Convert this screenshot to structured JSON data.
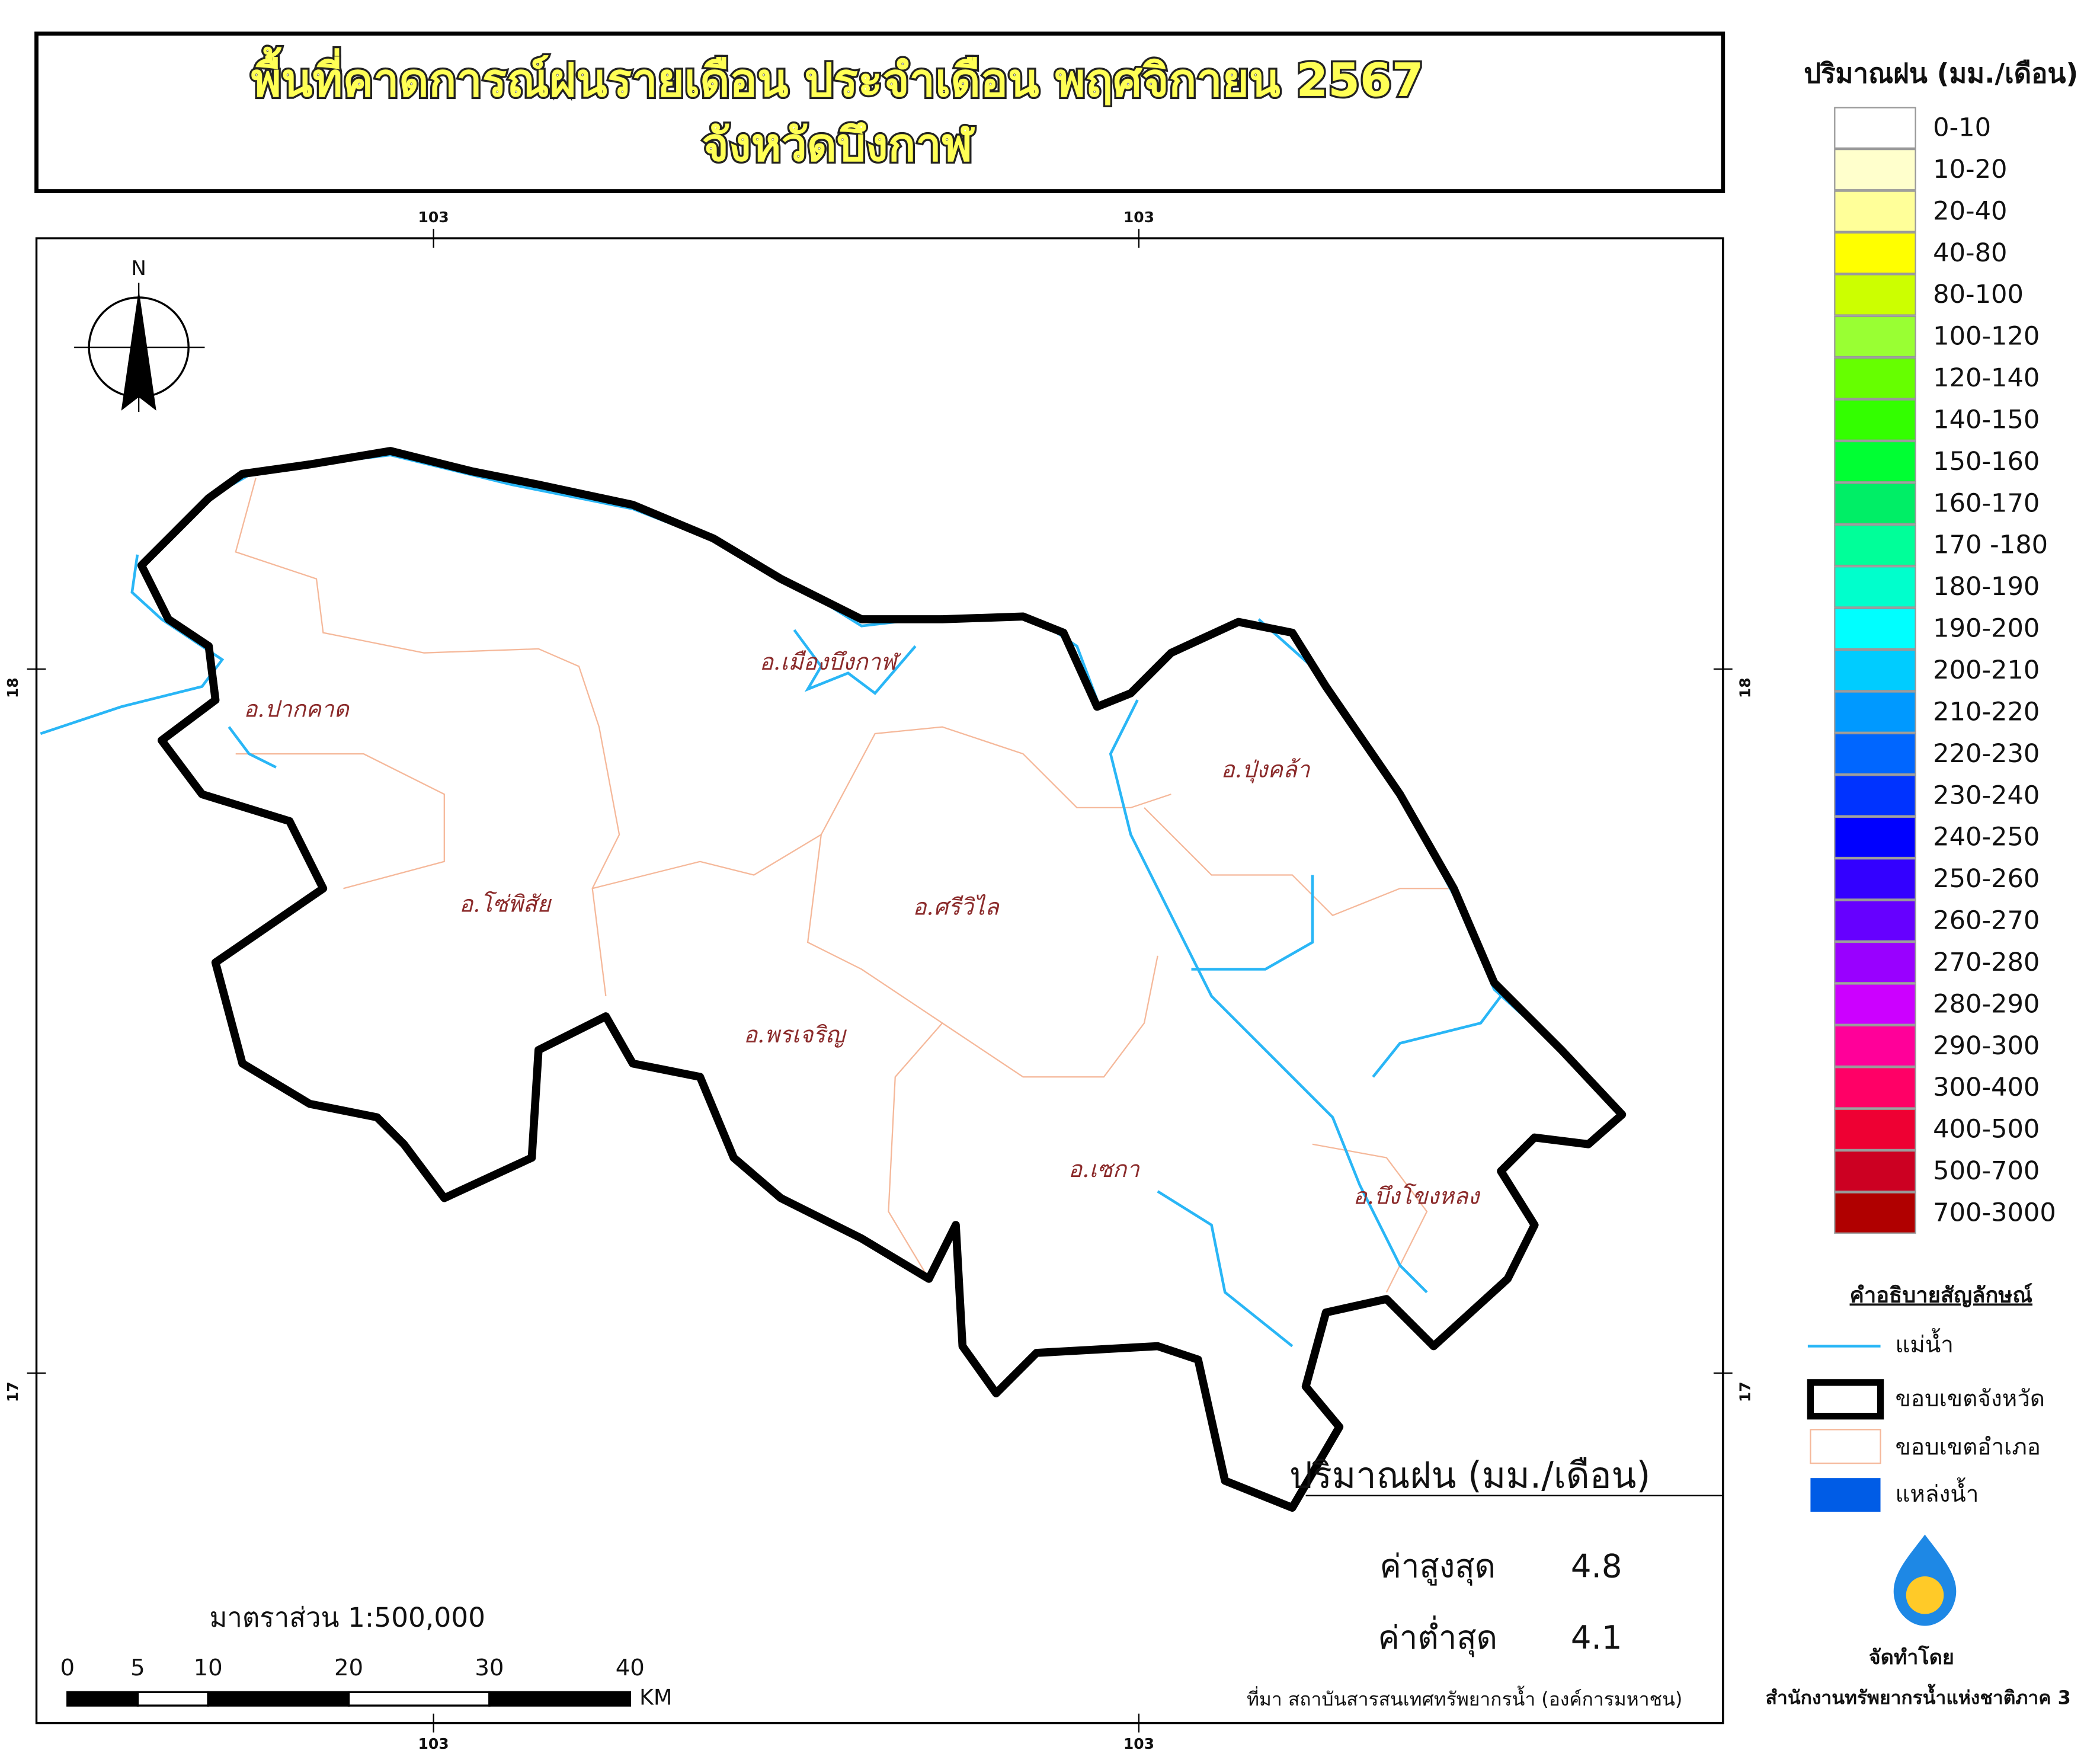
{
  "title": {
    "line1": "พื้นที่คาดการณ์ฝนรายเดือน ประจำเดือน พฤศจิกายน 2567",
    "line2": "จังหวัดบึงกาฬ"
  },
  "map": {
    "north": "N",
    "top_ticks": [
      103,
      103
    ],
    "bottom_ticks": [
      103,
      103
    ],
    "left_ticks": [
      18,
      17
    ],
    "right_ticks": [
      18,
      17
    ],
    "districts": [
      "อ.ปากคาด",
      "อ.เมืองบึงกาฬ",
      "อ.ปุ่งคล้า",
      "อ.โซ่พิสัย",
      "อ.ศรีวิไล",
      "อ.พรเจริญ",
      "อ.เซกา",
      "อ.บึงโขงหลง"
    ]
  },
  "legend": {
    "title": "ปริมาณฝน (มม./เดือน)",
    "classes": [
      {
        "label": "0-10",
        "color": "#ffffff"
      },
      {
        "label": "10-20",
        "color": "#ffffcc"
      },
      {
        "label": "20-40",
        "color": "#ffff99"
      },
      {
        "label": "40-80",
        "color": "#ffff00"
      },
      {
        "label": "80-100",
        "color": "#ccff00"
      },
      {
        "label": "100-120",
        "color": "#99ff33"
      },
      {
        "label": "120-140",
        "color": "#66ff00"
      },
      {
        "label": "140-150",
        "color": "#33ff00"
      },
      {
        "label": "150-160",
        "color": "#00ff33"
      },
      {
        "label": "160-170",
        "color": "#00ee66"
      },
      {
        "label": "170 -180",
        "color": "#00ff99"
      },
      {
        "label": "180-190",
        "color": "#00ffcc"
      },
      {
        "label": "190-200",
        "color": "#00ffff"
      },
      {
        "label": "200-210",
        "color": "#00ccff"
      },
      {
        "label": "210-220",
        "color": "#0099ff"
      },
      {
        "label": "220-230",
        "color": "#0066ff"
      },
      {
        "label": "230-240",
        "color": "#0033ff"
      },
      {
        "label": "240-250",
        "color": "#0000ff"
      },
      {
        "label": "250-260",
        "color": "#3300ff"
      },
      {
        "label": "260-270",
        "color": "#6600ff"
      },
      {
        "label": "270-280",
        "color": "#9900ff"
      },
      {
        "label": "280-290",
        "color": "#cc00ff"
      },
      {
        "label": "290-300",
        "color": "#ff0099"
      },
      {
        "label": "300-400",
        "color": "#ff0066"
      },
      {
        "label": "400-500",
        "color": "#ee0033"
      },
      {
        "label": "500-700",
        "color": "#cc0022"
      },
      {
        "label": "700-3000",
        "color": "#b00000"
      }
    ]
  },
  "symbols": {
    "title": "คำอธิบายสัญลักษณ์",
    "items": [
      "แม่น้ำ",
      "ขอบเขตจังหวัด",
      "ขอบเขตอำเภอ",
      "แหล่งน้ำ"
    ]
  },
  "stats": {
    "title": "ปริมาณฝน (มม./เดือน)",
    "max_label": "ค่าสูงสุด",
    "max": 4.8,
    "min_label": "ค่าต่ำสุด",
    "min": 4.1
  },
  "scale": {
    "text": "มาตราส่วน 1:500,000",
    "ticks": [
      0,
      5,
      10,
      20,
      30,
      40
    ],
    "unit": "KM"
  },
  "source": "ที่มา  สถาบันสารสนเทศทรัพยากรน้ำ (องค์การมหาชน)",
  "credit": {
    "label": "จัดทำโดย",
    "org": "สำนักงานทรัพยากรน้ำแห่งชาติภาค 3"
  }
}
